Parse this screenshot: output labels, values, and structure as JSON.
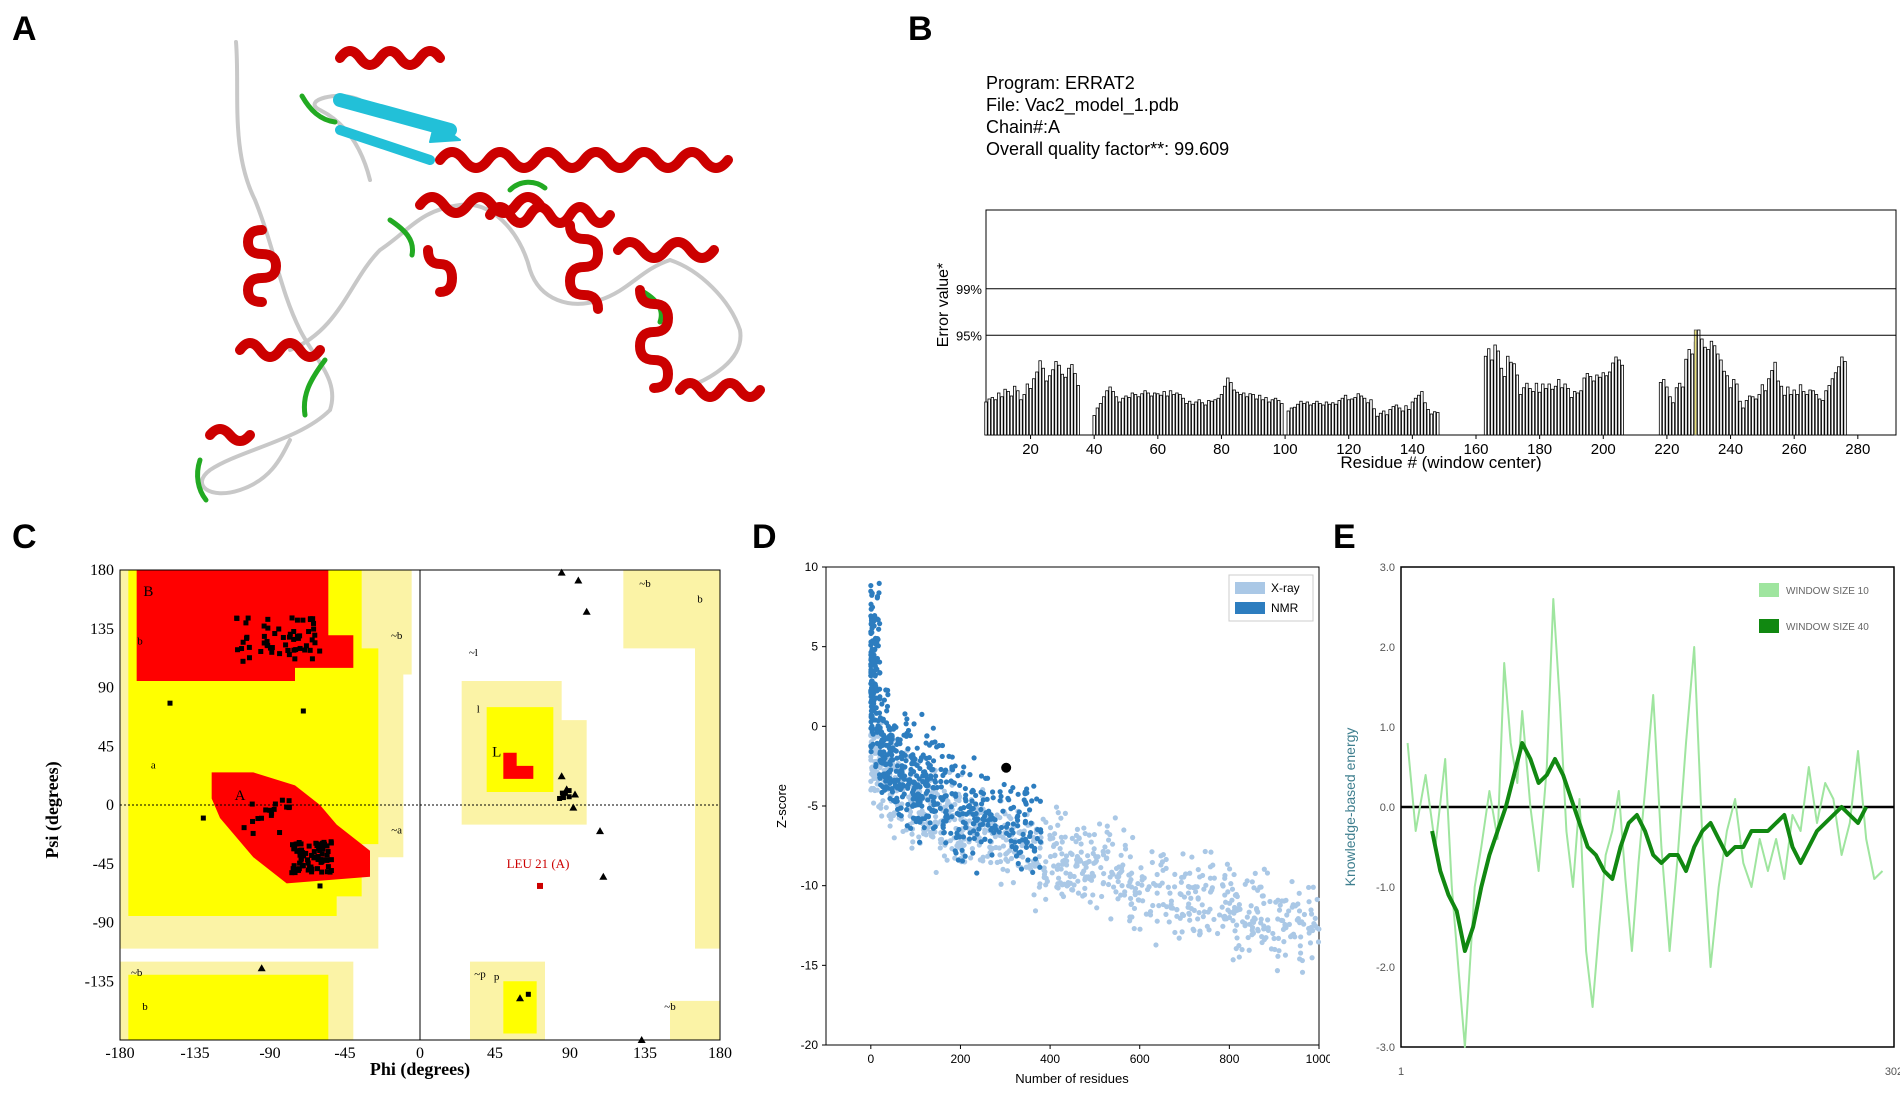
{
  "panel_labels": [
    "A",
    "B",
    "C",
    "D",
    "E"
  ],
  "structure": {
    "description_icon": "protein-ribbon-icon",
    "colors": {
      "helix": "#cc0000",
      "sheet": "#22c0d8",
      "turn": "#22aa22",
      "coil": "#c8c8c8"
    }
  },
  "errat": {
    "program": "Program: ERRAT2",
    "file": "File: Vac2_model_1.pdb",
    "chain": "Chain#:A",
    "quality": "Overall quality factor**: 99.609"
  },
  "chart_data": [
    {
      "id": "errat",
      "type": "bar",
      "title": "",
      "xlabel": "Residue # (window center)",
      "ylabel": "Error value*",
      "xlim": [
        6,
        292
      ],
      "ylim": [
        0,
        30
      ],
      "xticks": [
        20,
        40,
        60,
        80,
        100,
        120,
        140,
        160,
        180,
        200,
        220,
        240,
        260,
        280
      ],
      "thresholds": [
        {
          "label": "99%",
          "value": 19.5
        },
        {
          "label": "95%",
          "value": 13.3
        }
      ],
      "segments": [
        {
          "start": 6,
          "values": [
            4.4,
            4.8,
            5.0,
            4.7,
            5.6,
            5.1,
            6.1,
            5.8,
            5.2,
            6.5,
            5.9,
            4.7,
            5.4,
            6.8,
            6.2,
            7.5,
            8.4,
            9.9,
            8.9,
            7.2,
            7.9,
            8.7,
            9.8,
            9.3,
            8.1,
            7.7,
            8.9,
            9.4,
            8.2,
            6.6
          ]
        },
        {
          "start": 40,
          "values": [
            2.6,
            3.6,
            4.2,
            5.1,
            5.9,
            6.4,
            5.8,
            5.1,
            4.4,
            4.9,
            5.2,
            5.0,
            5.6,
            5.4,
            5.1,
            5.5,
            5.9,
            5.6,
            5.2,
            5.6,
            5.5,
            5.3,
            5.8,
            5.2,
            5.9,
            5.4,
            5.6,
            5.4,
            4.9,
            4.2,
            4.5,
            4.1,
            4.4,
            4.7,
            4.3,
            4.0,
            4.6,
            4.5,
            4.7,
            4.9,
            5.4,
            6.5,
            7.6,
            7.0,
            6.0,
            5.7,
            5.4,
            5.6,
            5.1,
            5.5,
            5.4,
            4.8,
            5.3,
            4.7,
            5.0,
            4.4,
            4.7,
            4.9,
            4.6,
            4.2
          ]
        },
        {
          "start": 101,
          "values": [
            3.2,
            3.6,
            3.7,
            4.1,
            4.5,
            4.2,
            4.4,
            4.0,
            4.2,
            4.5,
            4.2,
            4.0,
            4.4,
            4.1,
            4.3,
            4.1,
            4.6,
            4.9,
            5.3,
            4.7,
            4.8,
            5.0,
            5.5,
            5.2,
            4.9,
            4.3,
            4.7,
            3.5,
            2.5,
            2.9,
            3.2,
            2.7,
            3.4,
            3.8,
            4.0,
            3.6,
            3.2,
            3.9,
            3.4,
            4.4,
            4.9,
            5.3,
            5.8,
            4.3,
            3.4,
            2.8,
            3.1,
            3.0
          ]
        },
        {
          "start": 163,
          "values": [
            10.5,
            11.5,
            10.0,
            12.0,
            11.2,
            8.9,
            7.8,
            10.5,
            9.7,
            9.5,
            8.0,
            5.4,
            6.3,
            6.9,
            6.2,
            5.8,
            6.9,
            5.7,
            6.8,
            6.2,
            6.8,
            6.1,
            6.5,
            7.4,
            6.3,
            6.8,
            6.2,
            5.0,
            5.8,
            5.6,
            5.9,
            7.6,
            8.2,
            7.8,
            7.2,
            8.0,
            7.7,
            8.3,
            7.9,
            8.4,
            9.6,
            10.4,
            10.0,
            9.3
          ]
        },
        {
          "start": 218,
          "values": [
            7.0,
            7.4,
            6.4,
            5.1,
            4.3,
            6.3,
            6.9,
            6.4,
            10.1,
            11.4,
            10.8,
            12.4,
            14.0,
            12.8,
            11.7,
            11.4,
            12.5,
            11.9,
            10.8,
            10.0,
            8.5,
            7.9,
            6.3,
            7.4,
            6.8,
            4.5,
            3.6,
            4.6,
            5.2,
            5.1,
            4.8,
            5.4,
            6.7,
            5.9,
            7.5,
            8.6,
            9.7,
            7.2,
            6.5,
            5.3,
            6.4,
            5.4,
            6.0,
            5.4,
            6.7,
            5.8,
            5.4,
            6.0,
            5.9,
            5.4,
            4.8,
            4.6,
            5.9,
            6.6,
            7.5,
            8.3,
            9.1,
            10.4,
            9.8
          ]
        }
      ],
      "highlight": {
        "residue": 229,
        "value": 14.0,
        "color": "#e8e07a"
      }
    },
    {
      "id": "ramachandran",
      "type": "scatter",
      "xlabel": "Phi (degrees)",
      "ylabel": "Psi (degrees)",
      "xlim": [
        -180,
        180
      ],
      "ylim": [
        -180,
        180
      ],
      "xticks": [
        -180,
        -135,
        -90,
        -45,
        0,
        45,
        90,
        135,
        180
      ],
      "yticks": [
        180,
        135,
        90,
        45,
        0,
        -45,
        -90,
        -135
      ],
      "region_labels": [
        {
          "text": "B",
          "phi": -163,
          "psi": 160
        },
        {
          "text": "b",
          "phi": -168,
          "psi": 123
        },
        {
          "text": "A",
          "phi": -108,
          "psi": 4
        },
        {
          "text": "a",
          "phi": -160,
          "psi": 28
        },
        {
          "text": "~b",
          "phi": -14,
          "psi": 127
        },
        {
          "text": "~a",
          "phi": -14,
          "psi": -22
        },
        {
          "text": "L",
          "phi": 46,
          "psi": 37
        },
        {
          "text": "l",
          "phi": 35,
          "psi": 71
        },
        {
          "text": "~l",
          "phi": 32,
          "psi": 114
        },
        {
          "text": "~b",
          "phi": 135,
          "psi": 167
        },
        {
          "text": "b",
          "phi": 168,
          "psi": 155
        },
        {
          "text": "~b",
          "phi": -170,
          "psi": -131
        },
        {
          "text": "b",
          "phi": -165,
          "psi": -157
        },
        {
          "text": "~p",
          "phi": 36,
          "psi": -132
        },
        {
          "text": "p",
          "phi": 46,
          "psi": -134
        },
        {
          "text": "~b",
          "phi": 150,
          "psi": -157
        }
      ],
      "outlier_label": "LEU 21 (A)",
      "outlier": {
        "phi": 72,
        "psi": -62
      }
    },
    {
      "id": "prosa-zscore",
      "type": "scatter",
      "xlabel": "Number of residues",
      "ylabel": "Z-score",
      "xlim": [
        -100,
        1000
      ],
      "ylim": [
        -20,
        10
      ],
      "xticks": [
        0,
        200,
        400,
        600,
        800,
        1000
      ],
      "yticks": [
        10,
        5,
        0,
        -5,
        -10,
        -15,
        -20
      ],
      "legend": [
        {
          "name": "X-ray",
          "color": "#aac8e6"
        },
        {
          "name": "NMR",
          "color": "#2d7dbf"
        }
      ],
      "model_point": {
        "x": 302,
        "y": -2.6
      }
    },
    {
      "id": "prosa-energy",
      "type": "line",
      "xlabel": "",
      "ylabel": "Knowledge-based energy",
      "xlim": [
        1,
        302
      ],
      "ylim": [
        -3.0,
        3.0
      ],
      "xticks": [
        "1",
        "302"
      ],
      "yticks": [
        "3.0",
        "2.0",
        "1.0",
        "0.0",
        "-1.0",
        "-2.0",
        "-3.0"
      ],
      "series": [
        {
          "name": "WINDOW SIZE 10",
          "color": "#9fe59f",
          "x": [
            5,
            10,
            16,
            22,
            28,
            32,
            36,
            40,
            43,
            46,
            50,
            55,
            60,
            64,
            68,
            72,
            75,
            80,
            85,
            90,
            94,
            98,
            102,
            106,
            110,
            114,
            118,
            122,
            126,
            130,
            134,
            138,
            142,
            146,
            150,
            155,
            160,
            165,
            170,
            175,
            180,
            185,
            190,
            195,
            200,
            205,
            210,
            215,
            220,
            225,
            230,
            235,
            240,
            245,
            250,
            255,
            260,
            265,
            270,
            275,
            280,
            285,
            290,
            295
          ],
          "y": [
            0.8,
            -0.3,
            0.4,
            -0.5,
            0.6,
            -1.0,
            -2.0,
            -3.0,
            -2.0,
            -1.0,
            -0.5,
            0.2,
            -0.4,
            1.8,
            0.8,
            0.3,
            1.2,
            0.0,
            -0.8,
            0.5,
            2.6,
            1.3,
            -0.3,
            -1.0,
            0.1,
            -1.8,
            -2.5,
            -1.5,
            -0.6,
            -0.3,
            0.2,
            -0.9,
            -1.8,
            -0.7,
            0.2,
            1.4,
            -0.5,
            -1.8,
            -0.6,
            0.8,
            2.0,
            -0.4,
            -2.0,
            -1.0,
            -0.3,
            0.1,
            -0.7,
            -1.0,
            -0.4,
            -0.8,
            -0.4,
            -0.9,
            -0.1,
            -0.3,
            0.5,
            -0.2,
            0.3,
            0.1,
            -0.6,
            -0.2,
            0.7,
            -0.4,
            -0.9,
            -0.8
          ]
        },
        {
          "name": "WINDOW SIZE 40",
          "color": "#118811",
          "x": [
            20,
            25,
            30,
            35,
            40,
            45,
            50,
            55,
            60,
            65,
            70,
            75,
            80,
            85,
            90,
            95,
            100,
            105,
            110,
            115,
            120,
            125,
            130,
            135,
            140,
            145,
            150,
            155,
            160,
            165,
            170,
            175,
            180,
            185,
            190,
            195,
            200,
            205,
            210,
            215,
            220,
            225,
            230,
            235,
            240,
            245,
            250,
            255,
            260,
            265,
            270,
            275,
            280,
            285
          ],
          "y": [
            -0.3,
            -0.8,
            -1.1,
            -1.3,
            -1.8,
            -1.5,
            -1.0,
            -0.6,
            -0.3,
            0.0,
            0.4,
            0.8,
            0.6,
            0.3,
            0.4,
            0.6,
            0.4,
            0.1,
            -0.2,
            -0.5,
            -0.6,
            -0.8,
            -0.9,
            -0.5,
            -0.2,
            -0.1,
            -0.3,
            -0.6,
            -0.7,
            -0.6,
            -0.6,
            -0.8,
            -0.5,
            -0.3,
            -0.2,
            -0.4,
            -0.6,
            -0.5,
            -0.5,
            -0.3,
            -0.3,
            -0.3,
            -0.2,
            -0.1,
            -0.5,
            -0.7,
            -0.5,
            -0.3,
            -0.2,
            -0.1,
            0.0,
            -0.1,
            -0.2,
            0.0
          ]
        }
      ]
    }
  ]
}
